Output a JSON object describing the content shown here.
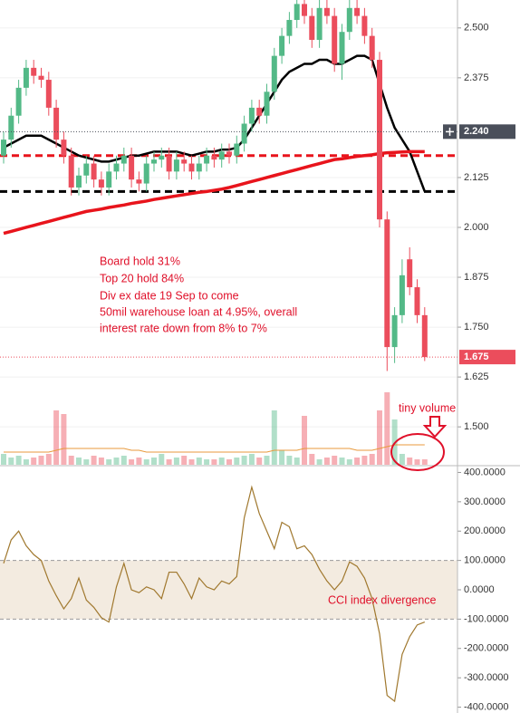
{
  "chart_data": [
    {
      "type": "candlestick",
      "open": [
        2.18,
        2.22,
        2.28,
        2.35,
        2.4,
        2.38,
        2.37,
        2.3,
        2.22,
        2.18,
        2.1,
        2.13,
        2.16,
        2.12,
        2.1,
        2.14,
        2.16,
        2.18,
        2.12,
        2.11,
        2.16,
        2.17,
        2.18,
        2.14,
        2.17,
        2.16,
        2.14,
        2.16,
        2.18,
        2.17,
        2.19,
        2.18,
        2.21,
        2.26,
        2.3,
        2.28,
        2.34,
        2.43,
        2.48,
        2.52,
        2.56,
        2.53,
        2.47,
        2.55,
        2.53,
        2.41,
        2.49,
        2.55,
        2.53,
        2.48,
        2.42,
        2.02,
        1.7,
        1.78,
        1.92,
        1.85,
        1.78
      ],
      "high": [
        2.24,
        2.3,
        2.37,
        2.42,
        2.42,
        2.4,
        2.39,
        2.32,
        2.24,
        2.2,
        2.15,
        2.18,
        2.18,
        2.14,
        2.16,
        2.18,
        2.2,
        2.2,
        2.14,
        2.18,
        2.19,
        2.2,
        2.2,
        2.19,
        2.19,
        2.18,
        2.18,
        2.2,
        2.2,
        2.21,
        2.21,
        2.23,
        2.28,
        2.32,
        2.32,
        2.36,
        2.45,
        2.5,
        2.54,
        2.57,
        2.57,
        2.55,
        2.57,
        2.57,
        2.55,
        2.51,
        2.57,
        2.57,
        2.55,
        2.5,
        2.44,
        2.04,
        1.8,
        1.92,
        1.95,
        1.87,
        1.8
      ],
      "low": [
        2.16,
        2.2,
        2.26,
        2.33,
        2.36,
        2.35,
        2.28,
        2.2,
        2.16,
        2.08,
        2.08,
        2.11,
        2.1,
        2.08,
        2.08,
        2.12,
        2.14,
        2.1,
        2.09,
        2.09,
        2.14,
        2.15,
        2.12,
        2.12,
        2.14,
        2.12,
        2.12,
        2.14,
        2.15,
        2.15,
        2.16,
        2.16,
        2.19,
        2.24,
        2.26,
        2.26,
        2.32,
        2.41,
        2.46,
        2.5,
        2.51,
        2.45,
        2.45,
        2.51,
        2.39,
        2.37,
        2.47,
        2.51,
        2.46,
        2.4,
        2.0,
        1.64,
        1.66,
        1.76,
        1.83,
        1.76,
        1.665
      ],
      "close": [
        2.22,
        2.28,
        2.35,
        2.4,
        2.38,
        2.37,
        2.3,
        2.22,
        2.18,
        2.1,
        2.13,
        2.16,
        2.12,
        2.1,
        2.14,
        2.16,
        2.18,
        2.12,
        2.11,
        2.16,
        2.17,
        2.18,
        2.14,
        2.17,
        2.16,
        2.14,
        2.16,
        2.18,
        2.17,
        2.19,
        2.18,
        2.21,
        2.26,
        2.3,
        2.28,
        2.34,
        2.43,
        2.48,
        2.52,
        2.56,
        2.53,
        2.47,
        2.55,
        2.53,
        2.41,
        2.49,
        2.55,
        2.53,
        2.48,
        2.42,
        2.02,
        1.7,
        1.78,
        1.88,
        1.85,
        1.78,
        1.675
      ],
      "up_color": "#53b987",
      "down_color": "#eb4d5c",
      "ylim": [
        1.405,
        2.57
      ],
      "yticks": [
        {
          "value": 1.5,
          "label": "1.500"
        },
        {
          "value": 1.625,
          "label": "1.625"
        },
        {
          "value": 1.75,
          "label": "1.750"
        },
        {
          "value": 1.875,
          "label": "1.875"
        },
        {
          "value": 2.0,
          "label": "2.000"
        },
        {
          "value": 2.125,
          "label": "2.125"
        },
        {
          "value": 2.375,
          "label": "2.375"
        },
        {
          "value": 2.5,
          "label": "2.500"
        }
      ],
      "grid": true,
      "lines": [
        {
          "color": "#000000",
          "values": [
            2.2,
            2.21,
            2.22,
            2.23,
            2.23,
            2.23,
            2.22,
            2.21,
            2.2,
            2.19,
            2.18,
            2.175,
            2.17,
            2.165,
            2.165,
            2.17,
            2.175,
            2.18,
            2.18,
            2.185,
            2.19,
            2.19,
            2.19,
            2.19,
            2.185,
            2.18,
            2.185,
            2.19,
            2.19,
            2.195,
            2.195,
            2.2,
            2.22,
            2.25,
            2.28,
            2.31,
            2.34,
            2.37,
            2.39,
            2.4,
            2.41,
            2.41,
            2.42,
            2.42,
            2.41,
            2.41,
            2.42,
            2.43,
            2.43,
            2.42,
            2.36,
            2.3,
            2.25,
            2.22,
            2.19,
            2.14,
            2.09
          ]
        },
        {
          "color": "#e8141c",
          "values": [
            1.985,
            1.99,
            1.995,
            2.0,
            2.005,
            2.01,
            2.015,
            2.02,
            2.025,
            2.03,
            2.035,
            2.04,
            2.043,
            2.046,
            2.05,
            2.053,
            2.056,
            2.06,
            2.063,
            2.066,
            2.07,
            2.073,
            2.076,
            2.079,
            2.082,
            2.085,
            2.088,
            2.09,
            2.093,
            2.096,
            2.1,
            2.105,
            2.11,
            2.115,
            2.12,
            2.125,
            2.13,
            2.135,
            2.14,
            2.145,
            2.15,
            2.155,
            2.16,
            2.165,
            2.17,
            2.172,
            2.175,
            2.178,
            2.18,
            2.182,
            2.185,
            2.187,
            2.188,
            2.189,
            2.19,
            2.19,
            2.19
          ]
        }
      ],
      "hlines": [
        {
          "value": 2.18,
          "color": "#e8141c"
        },
        {
          "value": 2.09,
          "color": "#000000"
        }
      ],
      "price_markers": [
        {
          "value": 2.24,
          "label": "2.240",
          "color": "#4a4f5a"
        },
        {
          "value": 1.675,
          "label": "1.675",
          "color": "#eb4d5c"
        }
      ],
      "volume": {
        "values": [
          6,
          4,
          5,
          3,
          4,
          5,
          6,
          30,
          28,
          5,
          4,
          3,
          5,
          4,
          3,
          4,
          5,
          3,
          4,
          3,
          4,
          6,
          3,
          4,
          5,
          3,
          4,
          3,
          3,
          4,
          3,
          4,
          5,
          6,
          4,
          5,
          30,
          8,
          5,
          4,
          27,
          6,
          3,
          4,
          5,
          4,
          3,
          4,
          5,
          6,
          30,
          40,
          25,
          6,
          4,
          3,
          3
        ],
        "ma": [
          7,
          7,
          7,
          7,
          7,
          7,
          7,
          8,
          9,
          9,
          9,
          9,
          9,
          9,
          9,
          9,
          9,
          8,
          8,
          7,
          7,
          7,
          7,
          7,
          7,
          7,
          7,
          7,
          7,
          7,
          7,
          7,
          7,
          7,
          7,
          7,
          8,
          8,
          8,
          8,
          9,
          9,
          9,
          9,
          9,
          9,
          9,
          8,
          8,
          8,
          9,
          10,
          11,
          11,
          11,
          11,
          11
        ],
        "ma_color": "#e89a3c"
      },
      "annotations": [
        "Board hold 31%",
        "Top 20 hold 84%",
        "Div ex date 19 Sep to come",
        "50mil warehouse loan at 4.95%, overall",
        "interest rate down from 8% to 7%",
        "tiny volume"
      ]
    },
    {
      "type": "line",
      "values": [
        90,
        170,
        200,
        150,
        120,
        100,
        30,
        -20,
        -65,
        -30,
        40,
        -35,
        -60,
        -95,
        -110,
        10,
        90,
        0,
        -10,
        10,
        0,
        -30,
        60,
        60,
        20,
        -30,
        40,
        10,
        0,
        30,
        20,
        45,
        245,
        350,
        260,
        200,
        140,
        230,
        215,
        140,
        150,
        120,
        70,
        30,
        0,
        30,
        95,
        80,
        40,
        -30,
        -150,
        -360,
        -380,
        -220,
        -160,
        -120,
        -110
      ],
      "color": "#a0782e",
      "ylim": [
        -420,
        420
      ],
      "yticks": [
        {
          "value": 400,
          "label": "400.0000"
        },
        {
          "value": 300,
          "label": "300.0000"
        },
        {
          "value": 200,
          "label": "200.0000"
        },
        {
          "value": 100,
          "label": "100.0000"
        },
        {
          "value": 0,
          "label": "0.0000"
        },
        {
          "value": -100,
          "label": "-100.0000"
        },
        {
          "value": -200,
          "label": "-200.0000"
        },
        {
          "value": -300,
          "label": "-300.0000"
        },
        {
          "value": -400,
          "label": "-400.0000"
        }
      ],
      "band": [
        -100,
        100
      ],
      "band_color": "#f3ebe0",
      "annotations": [
        "CCI index divergence"
      ]
    }
  ]
}
